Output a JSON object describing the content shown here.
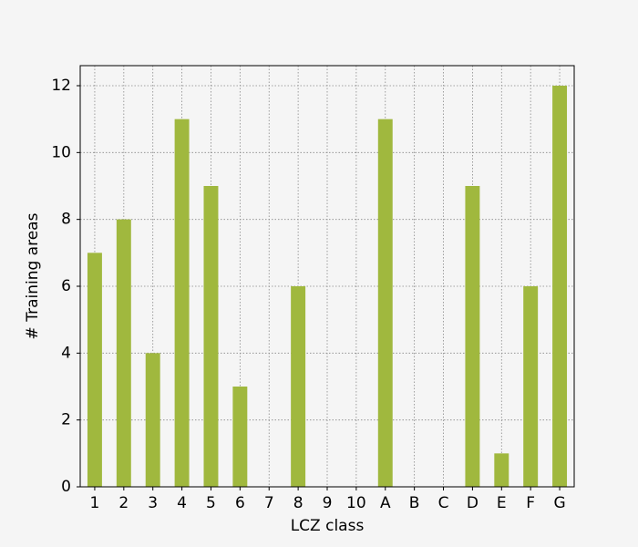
{
  "chart_data": {
    "type": "bar",
    "categories": [
      "1",
      "2",
      "3",
      "4",
      "5",
      "6",
      "7",
      "8",
      "9",
      "10",
      "A",
      "B",
      "C",
      "D",
      "E",
      "F",
      "G"
    ],
    "values": [
      7,
      8,
      4,
      11,
      9,
      3,
      0,
      6,
      0,
      0,
      11,
      0,
      0,
      9,
      1,
      6,
      12
    ],
    "color": "#a0b83e",
    "x_label": "LCZ class",
    "y_label": "# Training areas",
    "ylim": [
      0,
      12.6
    ],
    "yticks": [
      0,
      2,
      4,
      6,
      8,
      10,
      12
    ],
    "grid": true
  }
}
